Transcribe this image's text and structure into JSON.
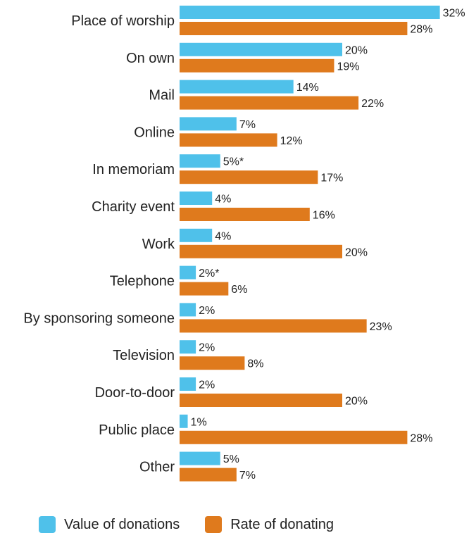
{
  "colors": {
    "value_series": "#4fc1ea",
    "rate_series": "#df7a1d"
  },
  "chart_data": {
    "type": "bar",
    "orientation": "horizontal",
    "categories": [
      "Place of worship",
      "On own",
      "Mail",
      "Online",
      "In memoriam",
      "Charity event",
      "Work",
      "Telephone",
      "By sponsoring someone",
      "Television",
      "Door-to-door",
      "Public place",
      "Other"
    ],
    "series": [
      {
        "name": "Value of donations",
        "values": [
          32,
          20,
          14,
          7,
          5,
          4,
          4,
          2,
          2,
          2,
          2,
          1,
          5
        ],
        "labels": [
          "32%",
          "20%",
          "14%",
          "7%",
          "5%*",
          "4%",
          "4%",
          "2%*",
          "2%",
          "2%",
          "2%",
          "1%",
          "5%"
        ]
      },
      {
        "name": "Rate of donating",
        "values": [
          28,
          19,
          22,
          12,
          17,
          16,
          20,
          6,
          23,
          8,
          20,
          28,
          7
        ],
        "labels": [
          "28%",
          "19%",
          "22%",
          "12%",
          "17%",
          "16%",
          "20%",
          "6%",
          "23%",
          "8%",
          "20%",
          "28%",
          "7%"
        ]
      }
    ],
    "xlim": [
      0,
      32
    ],
    "grid": false,
    "legend_placement": "bottom-left"
  }
}
